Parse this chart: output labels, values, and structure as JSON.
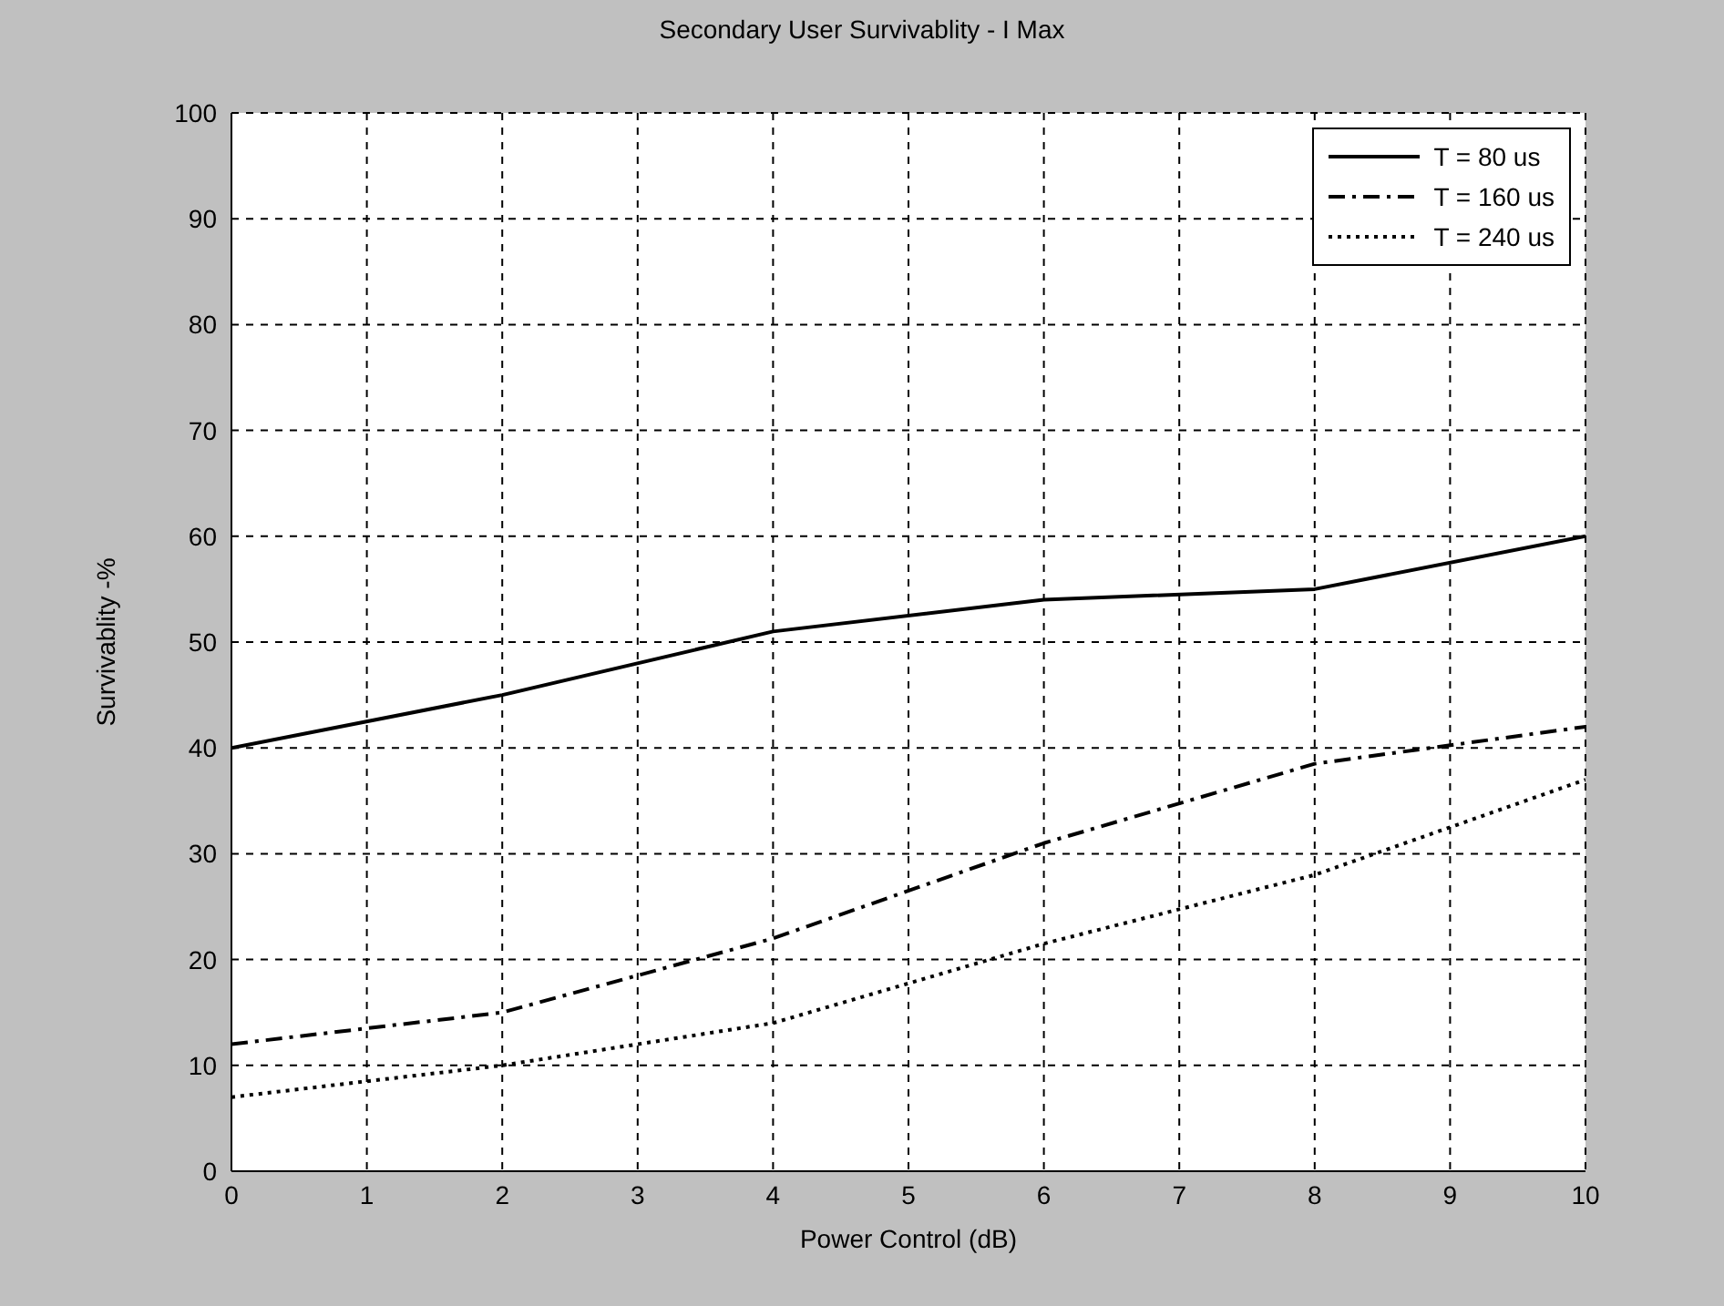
{
  "chart_data": {
    "type": "line",
    "title": "Secondary User Survivablity  - I Max",
    "xlabel": "Power Control (dB)",
    "ylabel": "Survivablity -%",
    "x": [
      0,
      2,
      4,
      6,
      8,
      10
    ],
    "series": [
      {
        "name": "T = 80 us",
        "color": "#000000",
        "line_style": "solid",
        "values": [
          40,
          45,
          51,
          54,
          55,
          60
        ]
      },
      {
        "name": "T = 160 us",
        "color": "#000000",
        "line_style": "dashdot",
        "values": [
          12,
          15,
          22,
          31,
          38.5,
          42
        ]
      },
      {
        "name": "T = 240 us",
        "color": "#000000",
        "line_style": "dotted",
        "values": [
          7,
          10,
          14,
          21.5,
          28,
          37
        ]
      }
    ],
    "xlim": [
      0,
      10
    ],
    "xticks": [
      0,
      1,
      2,
      3,
      4,
      5,
      6,
      7,
      8,
      9,
      10
    ],
    "ylim": [
      0,
      100
    ],
    "yticks": [
      0,
      10,
      20,
      30,
      40,
      50,
      60,
      70,
      80,
      90,
      100
    ],
    "grid": true,
    "legend": "top right",
    "marker": "none"
  }
}
